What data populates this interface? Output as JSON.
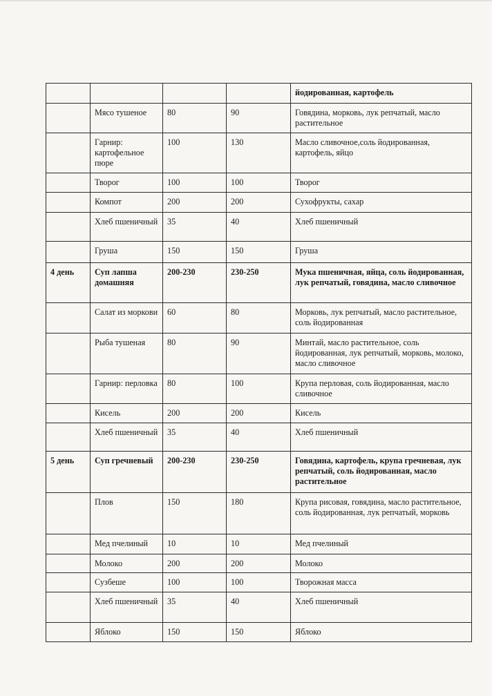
{
  "table": {
    "rows": [
      {
        "day": "",
        "dish": "",
        "portion_small": "",
        "portion_large": "",
        "composition": "йодированная, картофель",
        "bold": true,
        "composition_bold_only": true
      },
      {
        "day": "",
        "dish": "Мясо тушеное",
        "portion_small": "80",
        "portion_large": "90",
        "composition": "Говядина, морковь, лук репчатый, масло растительное",
        "bold": false
      },
      {
        "day": "",
        "dish": "Гарнир: картофельное пюре",
        "portion_small": "100",
        "portion_large": "130",
        "composition": "Масло сливочное,соль йодированная, картофель, яйцо",
        "bold": false
      },
      {
        "day": "",
        "dish": "Творог",
        "portion_small": "100",
        "portion_large": "100",
        "composition": "Творог",
        "bold": false
      },
      {
        "day": "",
        "dish": "Компот",
        "portion_small": "200",
        "portion_large": "200",
        "composition": "Сухофрукты, сахар",
        "bold": false
      },
      {
        "day": "",
        "dish": "Хлеб пшеничный",
        "portion_small": "35",
        "portion_large": "40",
        "composition": "Хлеб пшеничный",
        "bold": false
      },
      {
        "day": "",
        "dish": "Груша",
        "portion_small": "150",
        "portion_large": "150",
        "composition": "Груша",
        "bold": false
      },
      {
        "day": "4 день",
        "dish": "Суп лапша домашняя",
        "portion_small": "200-230",
        "portion_large": "230-250",
        "composition": "Мука пшеничная, яйца, соль йодированная, лук репчатый, говядина, масло сливочное",
        "bold": true
      },
      {
        "day": "",
        "dish": "Салат из моркови",
        "portion_small": "60",
        "portion_large": "80",
        "composition": "Морковь, лук репчатый, масло растительное, соль йодированная",
        "bold": false
      },
      {
        "day": "",
        "dish": "Рыба тушеная",
        "portion_small": "80",
        "portion_large": "90",
        "composition": "Минтай, масло растительное, соль йодированная, лук репчатый, морковь, молоко, масло сливочное",
        "bold": false
      },
      {
        "day": "",
        "dish": "Гарнир: перловка",
        "portion_small": "80",
        "portion_large": "100",
        "composition": "Крупа перловая, соль йодированная, масло сливочное",
        "bold": false
      },
      {
        "day": "",
        "dish": "Кисель",
        "portion_small": "200",
        "portion_large": "200",
        "composition": "Кисель",
        "bold": false
      },
      {
        "day": "",
        "dish": "Хлеб пшеничный",
        "portion_small": "35",
        "portion_large": "40",
        "composition": "Хлеб пшеничный",
        "bold": false
      },
      {
        "day": "5 день",
        "dish": "Суп гречневый",
        "portion_small": "200-230",
        "portion_large": "230-250",
        "composition": "Говядина, картофель, крупа гречневая, лук репчатый, соль йодированная, масло растительное",
        "bold": true
      },
      {
        "day": "",
        "dish": "Плов",
        "portion_small": "150",
        "portion_large": "180",
        "composition": "Крупа рисовая, говядина, масло растительное, соль йодированная, лук репчатый, морковь",
        "bold": false
      },
      {
        "day": "",
        "dish": "Мед пчелиный",
        "portion_small": "10",
        "portion_large": "10",
        "composition": "Мед пчелиный",
        "bold": false
      },
      {
        "day": "",
        "dish": "Молоко",
        "portion_small": "200",
        "portion_large": "200",
        "composition": "Молоко",
        "bold": false
      },
      {
        "day": "",
        "dish": "Сузбеше",
        "portion_small": "100",
        "portion_large": "100",
        "composition": "Творожная масса",
        "bold": false
      },
      {
        "day": "",
        "dish": "Хлеб пшеничный",
        "portion_small": "35",
        "portion_large": "40",
        "composition": "Хлеб пшеничный",
        "bold": false
      },
      {
        "day": "",
        "dish": "Яблоко",
        "portion_small": "150",
        "portion_large": "150",
        "composition": "Яблоко",
        "bold": false
      }
    ]
  }
}
